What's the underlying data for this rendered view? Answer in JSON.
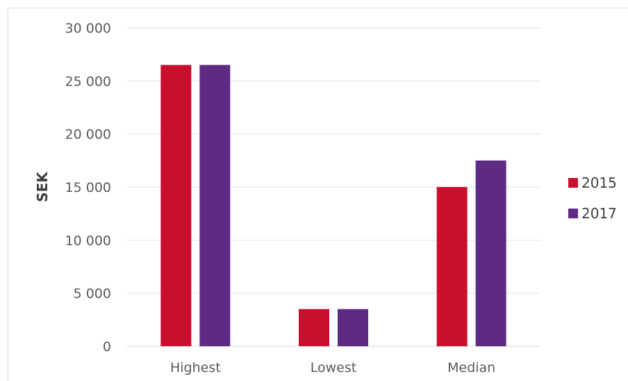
{
  "chart_data": {
    "type": "bar",
    "title": "",
    "xlabel": "",
    "ylabel": "SEK",
    "categories": [
      "Highest",
      "Lowest",
      "Median"
    ],
    "series": [
      {
        "name": "2015",
        "values": [
          26500,
          3500,
          15000
        ],
        "color": "#c8102e"
      },
      {
        "name": "2017",
        "values": [
          26500,
          3500,
          17500
        ],
        "color": "#5f2a84"
      }
    ],
    "ylim": [
      0,
      30000
    ],
    "yticks": [
      0,
      5000,
      10000,
      15000,
      20000,
      25000,
      30000
    ],
    "ytick_labels": [
      "0",
      "5 000",
      "10 000",
      "15 000",
      "20 000",
      "25 000",
      "30 000"
    ],
    "grid": true,
    "legend_position": "right"
  }
}
